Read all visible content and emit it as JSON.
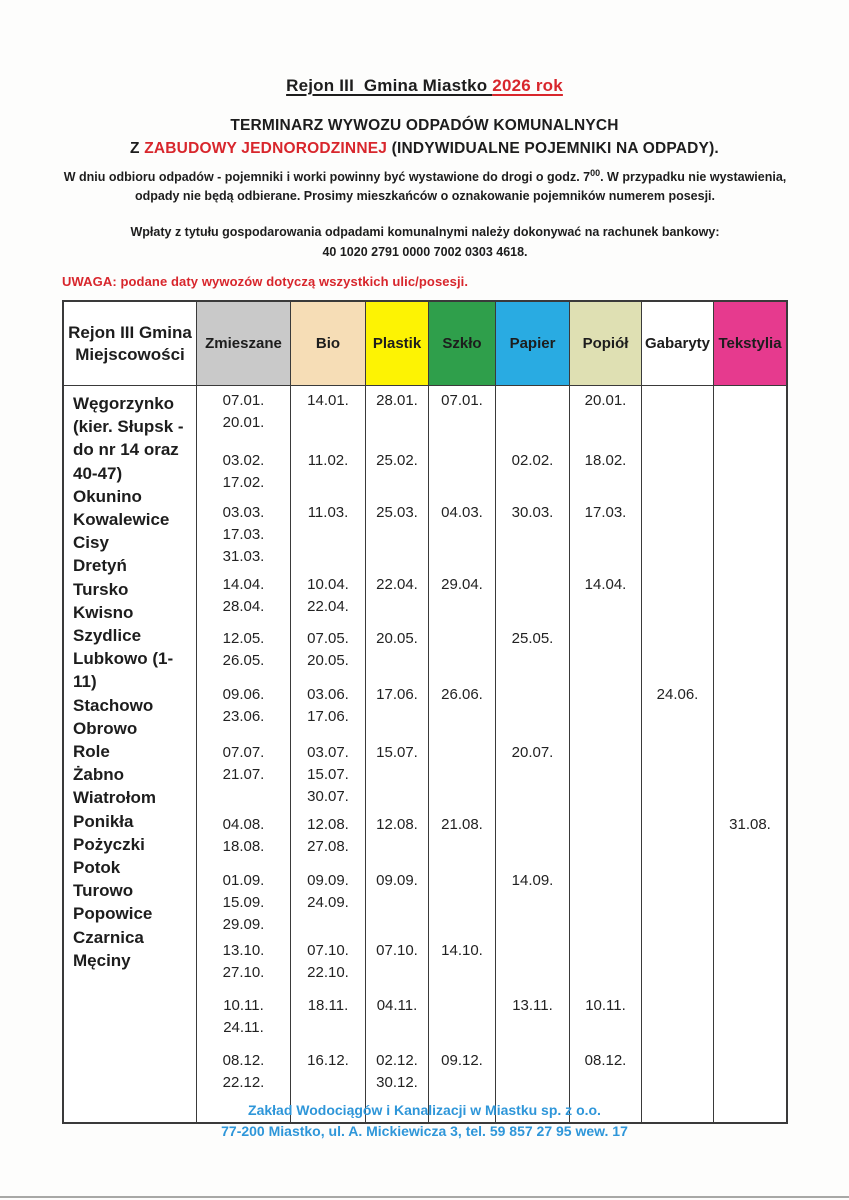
{
  "page": {
    "title_black": "Rejon III  Gmina Miastko ",
    "title_red": "2026 rok",
    "heading_main": "TERMINARZ WYWOZU ODPADÓW KOMUNALNYCH",
    "heading_sub_prefix": "Z ",
    "heading_sub_red": "ZABUDOWY JEDNORODZINNEJ",
    "heading_sub_suffix": " (INDYWIDUALNE POJEMNIKI NA ODPADY).",
    "note_part1": "W dniu odbioru odpadów  - pojemniki i worki powinny być wystawione do drogi o godz. 7",
    "note_sup": "00",
    "note_part2": ". W przypadku nie wystawienia, odpady nie będą odbierane. Prosimy mieszkańców o oznakowanie pojemników numerem posesji.",
    "payment_line1": "Wpłaty z tytułu gospodarowania odpadami komunalnymi należy dokonywać na rachunek bankowy:",
    "payment_line2": "40 1020 2791 0000 7002 0303 4618.",
    "warning": "UWAGA: podane daty wywozów dotyczą wszystkich ulic/posesji."
  },
  "table": {
    "locality_header": "Rejon III Gmina Miejscowości",
    "columns": [
      {
        "id": "zmieszane",
        "label": "Zmieszane",
        "bg": "#c9c9c9"
      },
      {
        "id": "bio",
        "label": "Bio",
        "bg": "#f6ddb6"
      },
      {
        "id": "plastik",
        "label": "Plastik",
        "bg": "#fdf303"
      },
      {
        "id": "szklo",
        "label": "Szkło",
        "bg": "#2f9f4b"
      },
      {
        "id": "papier",
        "label": "Papier",
        "bg": "#29abe2"
      },
      {
        "id": "popiol",
        "label": "Popiół",
        "bg": "#dfe0b3"
      },
      {
        "id": "gabaryty",
        "label": "Gabaryty",
        "bg": "#ffffff"
      },
      {
        "id": "tekstylia",
        "label": "Tekstylia",
        "bg": "#e63a8e"
      }
    ],
    "localities": [
      "Węgorzynko (kier. Słupsk - do nr 14 oraz 40-47)",
      "Okunino",
      "Kowalewice",
      "Cisy",
      "Dretyń",
      "Tursko",
      "Kwisno",
      "Szydlice",
      "Lubkowo (1-11)",
      "Stachowo",
      "Obrowo",
      "Role",
      "Żabno",
      "Wiatrołom",
      "Ponikła",
      "Pożyczki",
      "Potok",
      "Turowo",
      "Popowice",
      "Czarnica",
      "Męciny"
    ],
    "months": [
      {
        "cells": [
          [
            "07.01.",
            "20.01."
          ],
          [
            "14.01."
          ],
          [
            "28.01."
          ],
          [
            "07.01."
          ],
          [],
          [
            "20.01."
          ],
          [],
          []
        ]
      },
      {
        "cells": [
          [
            "03.02.",
            "17.02."
          ],
          [
            "11.02."
          ],
          [
            "25.02."
          ],
          [],
          [
            "02.02."
          ],
          [
            "18.02."
          ],
          [],
          []
        ]
      },
      {
        "cells": [
          [
            "03.03.",
            "17.03.",
            "31.03."
          ],
          [
            "11.03."
          ],
          [
            "25.03."
          ],
          [
            "04.03."
          ],
          [
            "30.03."
          ],
          [
            "17.03."
          ],
          [],
          []
        ]
      },
      {
        "cells": [
          [
            "14.04.",
            "28.04."
          ],
          [
            "10.04.",
            "22.04."
          ],
          [
            "22.04."
          ],
          [
            "29.04."
          ],
          [],
          [
            "14.04."
          ],
          [],
          []
        ]
      },
      {
        "cells": [
          [
            "12.05.",
            "26.05."
          ],
          [
            "07.05.",
            "20.05."
          ],
          [
            "20.05."
          ],
          [],
          [
            "25.05."
          ],
          [],
          [],
          []
        ]
      },
      {
        "cells": [
          [
            "09.06.",
            "23.06."
          ],
          [
            "03.06.",
            "17.06."
          ],
          [
            "17.06."
          ],
          [
            "26.06."
          ],
          [],
          [],
          [
            "24.06."
          ],
          []
        ]
      },
      {
        "cells": [
          [
            "07.07.",
            "21.07."
          ],
          [
            "03.07.",
            "15.07.",
            "30.07."
          ],
          [
            "15.07."
          ],
          [],
          [
            "20.07."
          ],
          [],
          [],
          []
        ]
      },
      {
        "cells": [
          [
            "04.08.",
            "18.08."
          ],
          [
            "12.08.",
            "27.08."
          ],
          [
            "12.08."
          ],
          [
            "21.08."
          ],
          [],
          [],
          [],
          [
            "31.08."
          ]
        ]
      },
      {
        "cells": [
          [
            "01.09.",
            "15.09.",
            "29.09."
          ],
          [
            "09.09.",
            "24.09."
          ],
          [
            "09.09."
          ],
          [],
          [
            "14.09."
          ],
          [],
          [],
          []
        ]
      },
      {
        "cells": [
          [
            "13.10.",
            "27.10."
          ],
          [
            "07.10.",
            "22.10."
          ],
          [
            "07.10."
          ],
          [
            "14.10."
          ],
          [],
          [],
          [],
          []
        ]
      },
      {
        "cells": [
          [
            "10.11.",
            "24.11."
          ],
          [
            "18.11."
          ],
          [
            "04.11."
          ],
          [],
          [
            "13.11."
          ],
          [
            "10.11."
          ],
          [],
          []
        ]
      },
      {
        "cells": [
          [
            "08.12.",
            "22.12."
          ],
          [
            "16.12."
          ],
          [
            "02.12.",
            "30.12."
          ],
          [
            "09.12."
          ],
          [],
          [
            "08.12."
          ],
          [],
          []
        ]
      }
    ]
  },
  "footer": {
    "company": "Zakład Wodociągów i Kanalizacji w Miastku sp. z o.o.",
    "address": "77-200 Miastko, ul. A. Mickiewicza 3, tel. 59 857 27 95 wew. 17"
  },
  "colors": {
    "accent_red": "#d8262c",
    "footer_blue": "#2e96d9"
  }
}
